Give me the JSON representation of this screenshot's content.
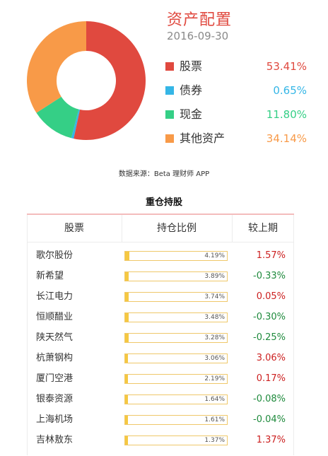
{
  "colors": {
    "title": "#e0493f",
    "positive": "#cc1f1f",
    "negative": "#1e8a3c",
    "bar_fill": "#f5c842",
    "bar_border": "#efc86a"
  },
  "header": {
    "title": "资产配置",
    "date": "2016-09-30"
  },
  "chart_data": [
    {
      "type": "pie",
      "title": "资产配置",
      "subtitle": "2016-09-30",
      "donut": true,
      "legend_position": "right",
      "slices": [
        {
          "label": "股票",
          "value": 53.41,
          "display": "53.41%",
          "color": "#e0493f"
        },
        {
          "label": "债券",
          "value": 0.65,
          "display": "0.65%",
          "color": "#35b6e6"
        },
        {
          "label": "现金",
          "value": 11.8,
          "display": "11.80%",
          "color": "#35cf86"
        },
        {
          "label": "其他资产",
          "value": 34.14,
          "display": "34.14%",
          "color": "#f89a48"
        }
      ]
    },
    {
      "type": "table",
      "title": "重仓持股",
      "columns": [
        "股票",
        "持仓比例",
        "较上期"
      ],
      "rows": [
        {
          "name": "歌尔股份",
          "ratio": 4.19,
          "ratio_text": "4.19%",
          "change": "1.57%",
          "direction": "up"
        },
        {
          "name": "新希望",
          "ratio": 3.89,
          "ratio_text": "3.89%",
          "change": "-0.33%",
          "direction": "down"
        },
        {
          "name": "长江电力",
          "ratio": 3.74,
          "ratio_text": "3.74%",
          "change": "0.05%",
          "direction": "up"
        },
        {
          "name": "恒顺醋业",
          "ratio": 3.48,
          "ratio_text": "3.48%",
          "change": "-0.30%",
          "direction": "down"
        },
        {
          "name": "陕天然气",
          "ratio": 3.28,
          "ratio_text": "3.28%",
          "change": "-0.25%",
          "direction": "down"
        },
        {
          "name": "杭萧钢构",
          "ratio": 3.06,
          "ratio_text": "3.06%",
          "change": "3.06%",
          "direction": "up"
        },
        {
          "name": "厦门空港",
          "ratio": 2.19,
          "ratio_text": "2.19%",
          "change": "0.17%",
          "direction": "up"
        },
        {
          "name": "银泰资源",
          "ratio": 1.64,
          "ratio_text": "1.64%",
          "change": "-0.08%",
          "direction": "down"
        },
        {
          "name": "上海机场",
          "ratio": 1.61,
          "ratio_text": "1.61%",
          "change": "-0.04%",
          "direction": "down"
        },
        {
          "name": "吉林敖东",
          "ratio": 1.37,
          "ratio_text": "1.37%",
          "change": "1.37%",
          "direction": "up"
        }
      ]
    }
  ],
  "source_note": "数据来源：Beta 理财师 APP",
  "holdings_title": "重仓持股"
}
